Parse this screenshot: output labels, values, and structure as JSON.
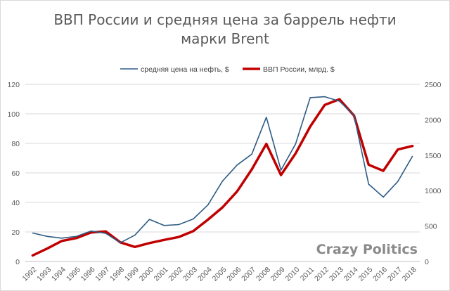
{
  "chart_data": {
    "type": "line",
    "title": [
      "ВВП России и средняя цена за баррель нефти",
      "марки Brent"
    ],
    "legend_position": "top",
    "grid": true,
    "x": [
      "1992",
      "1993",
      "1994",
      "1995",
      "1996",
      "1997",
      "1998",
      "1999",
      "2000",
      "2001",
      "2002",
      "2003",
      "2004",
      "2005",
      "2006",
      "2007",
      "2008",
      "2009",
      "2010",
      "2011",
      "2012",
      "2013",
      "2014",
      "2015",
      "2016",
      "2017",
      "2018"
    ],
    "y_left_ticks": [
      "0",
      "20",
      "40",
      "60",
      "80",
      "100",
      "120"
    ],
    "y_left_lim": [
      0,
      120
    ],
    "y_right_ticks": [
      "0",
      "500",
      "1000",
      "1500",
      "2000",
      "2500"
    ],
    "y_right_lim": [
      0,
      2500
    ],
    "series": [
      {
        "name": "средняя цена на нефть, $",
        "axis": "left",
        "color": "#2e5c85",
        "values": [
          19.3,
          17,
          15.8,
          17,
          20.6,
          19.1,
          12.7,
          17.8,
          28.5,
          24.4,
          25,
          28.8,
          38.3,
          54.5,
          65.4,
          72.7,
          97.7,
          61.9,
          79.6,
          111,
          111.6,
          108.6,
          99,
          52.4,
          43.6,
          54.2,
          71.3
        ]
      },
      {
        "name": "ВВП России, млрд. $",
        "axis": "right",
        "color": "#c00000",
        "values": [
          85,
          183,
          290,
          330,
          410,
          425,
          270,
          205,
          260,
          305,
          345,
          430,
          590,
          764,
          990,
          1300,
          1660,
          1220,
          1525,
          1905,
          2210,
          2290,
          2060,
          1365,
          1280,
          1580,
          1630
        ]
      }
    ]
  },
  "watermark": "Crazy Politics"
}
